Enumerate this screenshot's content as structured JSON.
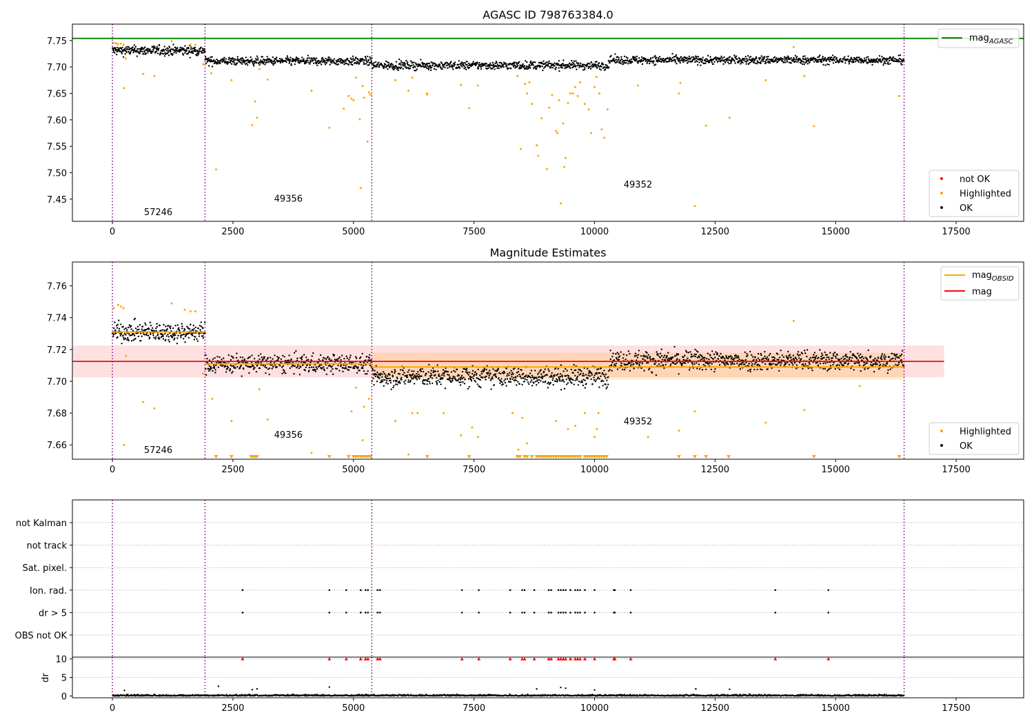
{
  "chart_data": [
    {
      "type": "scatter",
      "title": "AGASC ID 798763384.0",
      "xlim": [
        -830,
        18900
      ],
      "ylim": [
        7.408,
        7.781
      ],
      "x_ticks": [
        0,
        2500,
        5000,
        7500,
        10000,
        12500,
        15000,
        17500
      ],
      "x_tick_labels": [
        "0",
        "2500",
        "5000",
        "7500",
        "10000",
        "12500",
        "15000",
        "17500"
      ],
      "y_ticks": [
        7.45,
        7.5,
        7.55,
        7.6,
        7.65,
        7.7,
        7.75
      ],
      "y_tick_labels": [
        "7.45",
        "7.50",
        "7.55",
        "7.60",
        "7.65",
        "7.70",
        "7.75"
      ],
      "colors": {
        "ok": "#000000",
        "highlighted": "#ffa500",
        "not_ok": "#ff0000",
        "mag_agasc": "#008000",
        "obsid_line": "#800080"
      },
      "hlines": [
        {
          "name": "mag",
          "name_sub": "AGASC",
          "y": 7.754
        }
      ],
      "obsid_boundaries": [
        0,
        1920,
        5380,
        16420
      ],
      "obsid_labels": [
        {
          "text": "57246",
          "x": 950,
          "y": 7.42
        },
        {
          "text": "49356",
          "x": 3650,
          "y": 7.445
        },
        {
          "text": "49352",
          "x": 10900,
          "y": 7.472
        }
      ],
      "segments": [
        {
          "x0": 0,
          "x1": 1920,
          "center": 7.731,
          "spread": 0.0065,
          "step": 7
        },
        {
          "x0": 1920,
          "x1": 5380,
          "center": 7.711,
          "spread": 0.0055,
          "step": 8
        },
        {
          "x0": 5380,
          "x1": 10300,
          "center": 7.703,
          "spread": 0.0055,
          "step": 8
        },
        {
          "x0": 10300,
          "x1": 16420,
          "center": 7.713,
          "spread": 0.0055,
          "step": 8
        }
      ],
      "highlighted_points": [
        [
          20,
          7.746
        ],
        [
          70,
          7.745
        ],
        [
          110,
          7.743
        ],
        [
          170,
          7.744
        ],
        [
          230,
          7.742
        ],
        [
          240,
          7.66
        ],
        [
          280,
          7.716
        ],
        [
          640,
          7.687
        ],
        [
          870,
          7.683
        ],
        [
          1230,
          7.749
        ],
        [
          1620,
          7.742
        ],
        [
          1720,
          7.742
        ],
        [
          1880,
          7.705
        ],
        [
          2050,
          7.688
        ],
        [
          2150,
          7.506
        ],
        [
          2470,
          7.675
        ],
        [
          2900,
          7.59
        ],
        [
          2960,
          7.635
        ],
        [
          3000,
          7.604
        ],
        [
          3050,
          7.696
        ],
        [
          3220,
          7.676
        ],
        [
          4130,
          7.655
        ],
        [
          4500,
          7.585
        ],
        [
          4800,
          7.621
        ],
        [
          4900,
          7.645
        ],
        [
          4960,
          7.64
        ],
        [
          5000,
          7.637
        ],
        [
          5050,
          7.68
        ],
        [
          5130,
          7.601
        ],
        [
          5150,
          7.471
        ],
        [
          5190,
          7.664
        ],
        [
          5220,
          7.642
        ],
        [
          5290,
          7.559
        ],
        [
          5320,
          7.652
        ],
        [
          5350,
          7.648
        ],
        [
          5870,
          7.675
        ],
        [
          6140,
          7.655
        ],
        [
          6220,
          7.68
        ],
        [
          6520,
          7.65
        ],
        [
          6530,
          7.648
        ],
        [
          7230,
          7.666
        ],
        [
          7400,
          7.622
        ],
        [
          7580,
          7.665
        ],
        [
          8400,
          7.683
        ],
        [
          8470,
          7.545
        ],
        [
          8560,
          7.668
        ],
        [
          8600,
          7.65
        ],
        [
          8650,
          7.671
        ],
        [
          8700,
          7.63
        ],
        [
          8800,
          7.552
        ],
        [
          8830,
          7.532
        ],
        [
          8900,
          7.603
        ],
        [
          9010,
          7.507
        ],
        [
          9060,
          7.623
        ],
        [
          9120,
          7.647
        ],
        [
          9200,
          7.579
        ],
        [
          9230,
          7.575
        ],
        [
          9260,
          7.637
        ],
        [
          9300,
          7.442
        ],
        [
          9350,
          7.593
        ],
        [
          9370,
          7.511
        ],
        [
          9400,
          7.528
        ],
        [
          9450,
          7.632
        ],
        [
          9500,
          7.65
        ],
        [
          9550,
          7.65
        ],
        [
          9600,
          7.662
        ],
        [
          9650,
          7.645
        ],
        [
          9700,
          7.671
        ],
        [
          9800,
          7.63
        ],
        [
          9880,
          7.62
        ],
        [
          9930,
          7.575
        ],
        [
          10000,
          7.662
        ],
        [
          10040,
          7.681
        ],
        [
          10100,
          7.65
        ],
        [
          10150,
          7.582
        ],
        [
          10200,
          7.566
        ],
        [
          10270,
          7.62
        ],
        [
          10900,
          7.665
        ],
        [
          11750,
          7.65
        ],
        [
          11780,
          7.67
        ],
        [
          12080,
          7.437
        ],
        [
          12310,
          7.589
        ],
        [
          12800,
          7.604
        ],
        [
          13550,
          7.675
        ],
        [
          14130,
          7.738
        ],
        [
          14350,
          7.683
        ],
        [
          14550,
          7.588
        ],
        [
          16320,
          7.645
        ]
      ],
      "legend": [
        {
          "label": "mag",
          "label_sub": "AGASC",
          "kind": "line",
          "color": "#008000"
        }
      ],
      "legend2": [
        {
          "label": "not OK",
          "kind": "point",
          "color": "#ff0000"
        },
        {
          "label": "Highlighted",
          "kind": "point",
          "color": "#ffa500"
        },
        {
          "label": "OK",
          "kind": "point",
          "color": "#000000"
        }
      ]
    },
    {
      "type": "scatter",
      "title": "Magnitude Estimates",
      "xlim": [
        -830,
        18900
      ],
      "ylim": [
        7.651,
        7.775
      ],
      "x_ticks": [
        0,
        2500,
        5000,
        7500,
        10000,
        12500,
        15000,
        17500
      ],
      "x_tick_labels": [
        "0",
        "2500",
        "5000",
        "7500",
        "10000",
        "12500",
        "15000",
        "17500"
      ],
      "y_ticks": [
        7.66,
        7.68,
        7.7,
        7.72,
        7.74,
        7.76
      ],
      "y_tick_labels": [
        "7.66",
        "7.68",
        "7.70",
        "7.72",
        "7.74",
        "7.76"
      ],
      "mag_line": {
        "name": "mag",
        "y": 7.7125,
        "band": [
          7.7025,
          7.7225
        ],
        "x0": -830,
        "x1": 17250,
        "color": "#ff0000"
      },
      "obsid_mags": [
        {
          "x0": 0,
          "x1": 1920,
          "y": 7.731
        },
        {
          "x0": 1920,
          "x1": 5380,
          "y": 7.711
        },
        {
          "x0": 5380,
          "x1": 16420,
          "y": 7.709
        }
      ],
      "obsid_bands": [
        {
          "x0": 5380,
          "x1": 16420,
          "y0": 7.701,
          "y1": 7.718
        }
      ],
      "obsid_boundaries": [
        0,
        1920,
        5380,
        16420
      ],
      "obsid_labels": [
        {
          "text": "57246",
          "x": 950,
          "y": 7.655
        },
        {
          "text": "49356",
          "x": 3650,
          "y": 7.6645
        },
        {
          "text": "49352",
          "x": 10900,
          "y": 7.673
        }
      ],
      "segments": [
        {
          "x0": 0,
          "x1": 1920,
          "center": 7.731,
          "spread": 0.0042,
          "step": 7
        },
        {
          "x0": 1920,
          "x1": 5380,
          "center": 7.711,
          "spread": 0.0042,
          "step": 8
        },
        {
          "x0": 5380,
          "x1": 10300,
          "center": 7.703,
          "spread": 0.0045,
          "step": 8
        },
        {
          "x0": 10300,
          "x1": 16420,
          "center": 7.713,
          "spread": 0.0045,
          "step": 8
        }
      ],
      "highlighted_points": [
        [
          30,
          7.746
        ],
        [
          120,
          7.748
        ],
        [
          180,
          7.747
        ],
        [
          230,
          7.746
        ],
        [
          240,
          7.66
        ],
        [
          280,
          7.716
        ],
        [
          640,
          7.687
        ],
        [
          870,
          7.683
        ],
        [
          1230,
          7.749
        ],
        [
          1500,
          7.745
        ],
        [
          1620,
          7.744
        ],
        [
          1720,
          7.744
        ],
        [
          1880,
          7.705
        ],
        [
          2070,
          7.689
        ],
        [
          2470,
          7.675
        ],
        [
          3050,
          7.695
        ],
        [
          3220,
          7.676
        ],
        [
          4130,
          7.655
        ],
        [
          4960,
          7.681
        ],
        [
          5050,
          7.696
        ],
        [
          5190,
          7.663
        ],
        [
          5220,
          7.684
        ],
        [
          5320,
          7.689
        ],
        [
          5870,
          7.675
        ],
        [
          6140,
          7.654
        ],
        [
          6220,
          7.68
        ],
        [
          6330,
          7.68
        ],
        [
          6870,
          7.68
        ],
        [
          7230,
          7.666
        ],
        [
          7460,
          7.671
        ],
        [
          7580,
          7.665
        ],
        [
          8300,
          7.68
        ],
        [
          8420,
          7.657
        ],
        [
          8500,
          7.677
        ],
        [
          8600,
          7.661
        ],
        [
          9200,
          7.675
        ],
        [
          9450,
          7.67
        ],
        [
          9600,
          7.672
        ],
        [
          9800,
          7.68
        ],
        [
          10000,
          7.665
        ],
        [
          10050,
          7.67
        ],
        [
          10080,
          7.68
        ],
        [
          11110,
          7.665
        ],
        [
          11750,
          7.669
        ],
        [
          12080,
          7.681
        ],
        [
          13550,
          7.674
        ],
        [
          14130,
          7.738
        ],
        [
          14350,
          7.682
        ],
        [
          15500,
          7.697
        ]
      ],
      "clipped_low_x": [
        2150,
        2470,
        2880,
        2920,
        2960,
        3000,
        4500,
        4900,
        5000,
        5050,
        5100,
        5150,
        5200,
        5250,
        5300,
        5350,
        6530,
        7400,
        8400,
        8450,
        8550,
        8600,
        8700,
        8800,
        8850,
        8900,
        8950,
        9000,
        9050,
        9100,
        9150,
        9200,
        9250,
        9300,
        9350,
        9400,
        9450,
        9500,
        9550,
        9600,
        9650,
        9700,
        9800,
        9850,
        9900,
        9950,
        10000,
        10050,
        10100,
        10150,
        10200,
        10250,
        11750,
        12080,
        12310,
        12780,
        14550,
        16320
      ],
      "legend": [
        {
          "label": "mag",
          "label_sub": "OBSID",
          "kind": "line",
          "color": "#ffa500"
        },
        {
          "label": "mag",
          "kind": "line",
          "color": "#ff0000"
        }
      ],
      "legend2": [
        {
          "label": "Highlighted",
          "kind": "point",
          "color": "#ffa500"
        },
        {
          "label": "OK",
          "kind": "point",
          "color": "#000000"
        }
      ]
    },
    {
      "type": "scatter",
      "xlim": [
        -830,
        18900
      ],
      "flags": [
        "not Kalman",
        "not track",
        "Sat. pixel.",
        "Ion. rad.",
        "dr > 5",
        "OBS not OK"
      ],
      "flag_points": {
        "Ion. rad.": [
          2700,
          4500,
          4850,
          5150,
          5250,
          5300,
          5500,
          5550,
          7250,
          7600,
          8250,
          8500,
          8550,
          8750,
          9050,
          9100,
          9250,
          9300,
          9350,
          9400,
          9500,
          9600,
          9650,
          9700,
          9800,
          10000,
          10400,
          10420,
          10750,
          13750,
          14850
        ],
        "dr > 5": [
          2700,
          4500,
          4850,
          5150,
          5250,
          5300,
          5500,
          5550,
          7250,
          7600,
          8250,
          8500,
          8550,
          8750,
          9050,
          9100,
          9250,
          9300,
          9350,
          9400,
          9500,
          9600,
          9650,
          9700,
          9800,
          10000,
          10400,
          10420,
          10750,
          13750,
          14850
        ]
      },
      "obsid_boundaries": [
        0,
        1920,
        5380,
        16420
      ]
    },
    {
      "type": "scatter",
      "ylabel": "dr",
      "xlim": [
        -830,
        18900
      ],
      "x_ticks": [
        0,
        2500,
        5000,
        7500,
        10000,
        12500,
        15000,
        17500
      ],
      "x_tick_labels": [
        "0",
        "2500",
        "5000",
        "7500",
        "10000",
        "12500",
        "15000",
        "17500"
      ],
      "ylim": [
        -0.5,
        10.5
      ],
      "y_ticks": [
        0,
        5,
        10
      ],
      "y_tick_labels": [
        "0",
        "5",
        "10"
      ],
      "clipped_high_x": [
        2700,
        4500,
        4850,
        5150,
        5250,
        5300,
        5500,
        5550,
        7250,
        7600,
        8250,
        8500,
        8550,
        8750,
        9050,
        9100,
        9250,
        9300,
        9350,
        9400,
        9500,
        9600,
        9650,
        9700,
        9800,
        10000,
        10400,
        10420,
        10750,
        13750,
        14850
      ],
      "outliers": [
        [
          250,
          1.5
        ],
        [
          2200,
          2.6
        ],
        [
          2900,
          1.7
        ],
        [
          3000,
          1.9
        ],
        [
          4500,
          2.4
        ],
        [
          8800,
          1.9
        ],
        [
          9300,
          2.3
        ],
        [
          9400,
          2.1
        ],
        [
          10000,
          1.6
        ],
        [
          12100,
          1.9
        ],
        [
          12800,
          1.8
        ]
      ],
      "obsid_boundaries": [
        0,
        1920,
        5380,
        16420
      ]
    }
  ]
}
